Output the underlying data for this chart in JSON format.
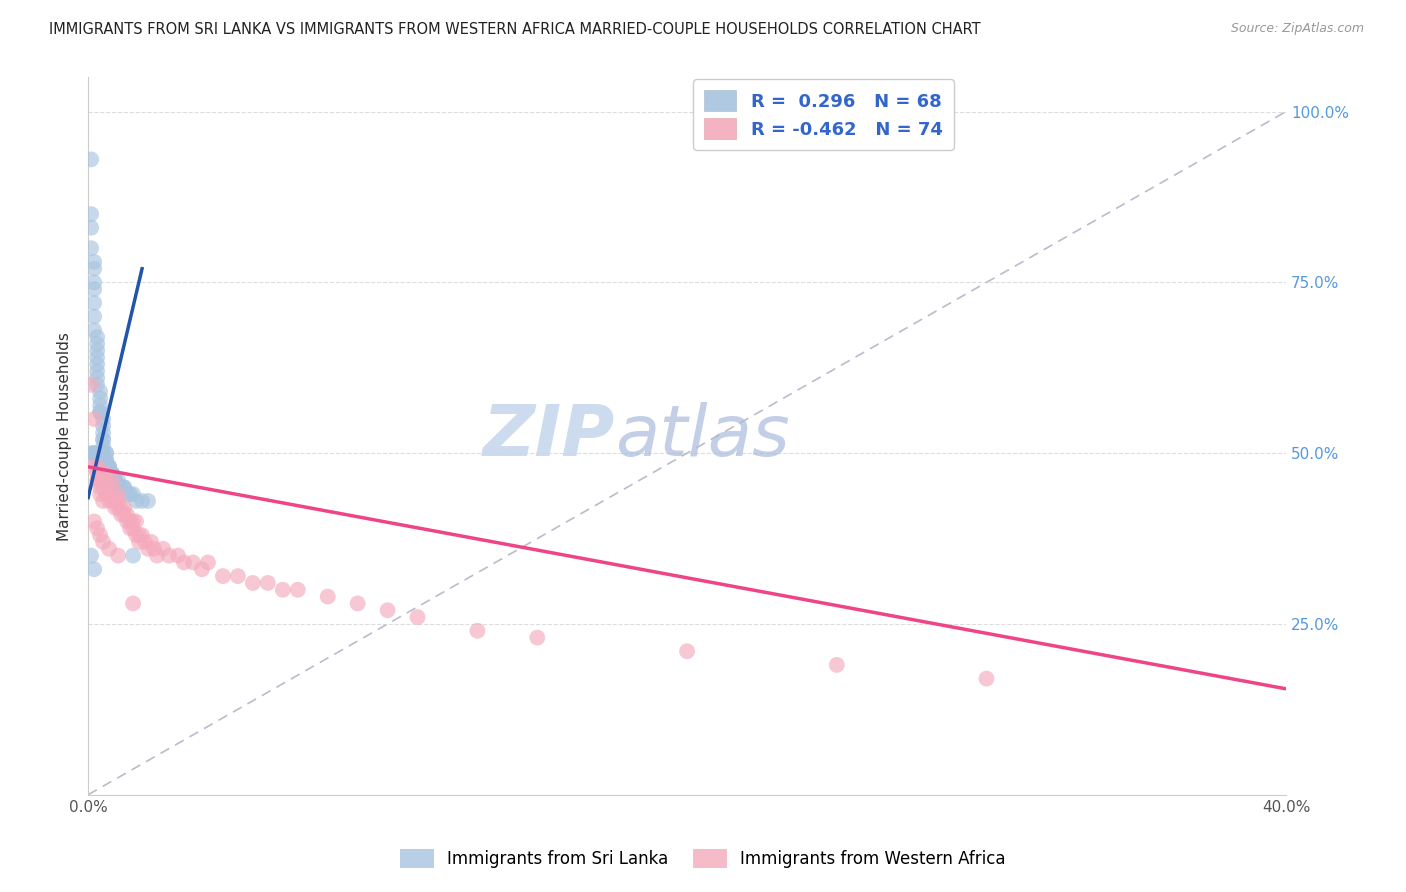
{
  "title": "IMMIGRANTS FROM SRI LANKA VS IMMIGRANTS FROM WESTERN AFRICA MARRIED-COUPLE HOUSEHOLDS CORRELATION CHART",
  "source": "Source: ZipAtlas.com",
  "ylabel": "Married-couple Households",
  "legend_label_blue": "Immigrants from Sri Lanka",
  "legend_label_pink": "Immigrants from Western Africa",
  "watermark_zip": "ZIP",
  "watermark_atlas": "atlas",
  "blue_color": "#A8C4E0",
  "pink_color": "#F4AABC",
  "blue_line_color": "#2255AA",
  "pink_line_color": "#EE4488",
  "diagonal_color": "#BBBBCC",
  "x_range": [
    0.0,
    0.4
  ],
  "y_range": [
    0.0,
    1.05
  ],
  "sri_lanka_x": [
    0.001,
    0.001,
    0.001,
    0.001,
    0.002,
    0.002,
    0.002,
    0.002,
    0.002,
    0.002,
    0.002,
    0.003,
    0.003,
    0.003,
    0.003,
    0.003,
    0.003,
    0.003,
    0.003,
    0.004,
    0.004,
    0.004,
    0.004,
    0.004,
    0.005,
    0.005,
    0.005,
    0.005,
    0.005,
    0.005,
    0.005,
    0.006,
    0.006,
    0.006,
    0.006,
    0.007,
    0.007,
    0.007,
    0.008,
    0.008,
    0.008,
    0.009,
    0.009,
    0.01,
    0.01,
    0.011,
    0.012,
    0.013,
    0.014,
    0.015,
    0.016,
    0.018,
    0.02,
    0.001,
    0.002,
    0.002,
    0.003,
    0.003,
    0.004,
    0.005,
    0.005,
    0.006,
    0.007,
    0.009,
    0.012,
    0.015,
    0.001,
    0.002
  ],
  "sri_lanka_y": [
    0.93,
    0.85,
    0.83,
    0.8,
    0.78,
    0.77,
    0.75,
    0.74,
    0.72,
    0.7,
    0.68,
    0.67,
    0.66,
    0.65,
    0.64,
    0.63,
    0.62,
    0.61,
    0.6,
    0.59,
    0.58,
    0.57,
    0.56,
    0.56,
    0.55,
    0.54,
    0.53,
    0.52,
    0.52,
    0.51,
    0.5,
    0.5,
    0.5,
    0.49,
    0.49,
    0.48,
    0.48,
    0.48,
    0.47,
    0.47,
    0.47,
    0.46,
    0.46,
    0.46,
    0.45,
    0.45,
    0.45,
    0.44,
    0.44,
    0.44,
    0.43,
    0.43,
    0.43,
    0.5,
    0.5,
    0.5,
    0.5,
    0.49,
    0.49,
    0.48,
    0.48,
    0.47,
    0.47,
    0.46,
    0.45,
    0.35,
    0.35,
    0.33
  ],
  "western_africa_x": [
    0.001,
    0.002,
    0.002,
    0.003,
    0.003,
    0.003,
    0.004,
    0.004,
    0.004,
    0.005,
    0.005,
    0.005,
    0.006,
    0.006,
    0.006,
    0.007,
    0.007,
    0.008,
    0.008,
    0.008,
    0.009,
    0.009,
    0.01,
    0.01,
    0.01,
    0.011,
    0.011,
    0.012,
    0.012,
    0.013,
    0.013,
    0.014,
    0.014,
    0.015,
    0.015,
    0.016,
    0.016,
    0.017,
    0.017,
    0.018,
    0.019,
    0.02,
    0.021,
    0.022,
    0.023,
    0.025,
    0.027,
    0.03,
    0.032,
    0.035,
    0.038,
    0.04,
    0.045,
    0.05,
    0.055,
    0.06,
    0.065,
    0.07,
    0.08,
    0.09,
    0.1,
    0.11,
    0.13,
    0.15,
    0.2,
    0.25,
    0.3,
    0.002,
    0.003,
    0.004,
    0.005,
    0.007,
    0.01,
    0.015
  ],
  "western_africa_y": [
    0.6,
    0.55,
    0.48,
    0.48,
    0.47,
    0.46,
    0.46,
    0.45,
    0.44,
    0.46,
    0.45,
    0.43,
    0.47,
    0.46,
    0.44,
    0.44,
    0.43,
    0.46,
    0.45,
    0.43,
    0.43,
    0.42,
    0.44,
    0.43,
    0.42,
    0.42,
    0.41,
    0.42,
    0.41,
    0.4,
    0.41,
    0.4,
    0.39,
    0.4,
    0.39,
    0.38,
    0.4,
    0.38,
    0.37,
    0.38,
    0.37,
    0.36,
    0.37,
    0.36,
    0.35,
    0.36,
    0.35,
    0.35,
    0.34,
    0.34,
    0.33,
    0.34,
    0.32,
    0.32,
    0.31,
    0.31,
    0.3,
    0.3,
    0.29,
    0.28,
    0.27,
    0.26,
    0.24,
    0.23,
    0.21,
    0.19,
    0.17,
    0.4,
    0.39,
    0.38,
    0.37,
    0.36,
    0.35,
    0.28
  ],
  "blue_line_x": [
    0.0,
    0.018
  ],
  "blue_line_y": [
    0.435,
    0.77
  ],
  "pink_line_x": [
    0.0,
    0.4
  ],
  "pink_line_y": [
    0.48,
    0.155
  ],
  "diag_line_x": [
    0.0,
    0.4
  ],
  "diag_line_y": [
    0.0,
    1.0
  ]
}
